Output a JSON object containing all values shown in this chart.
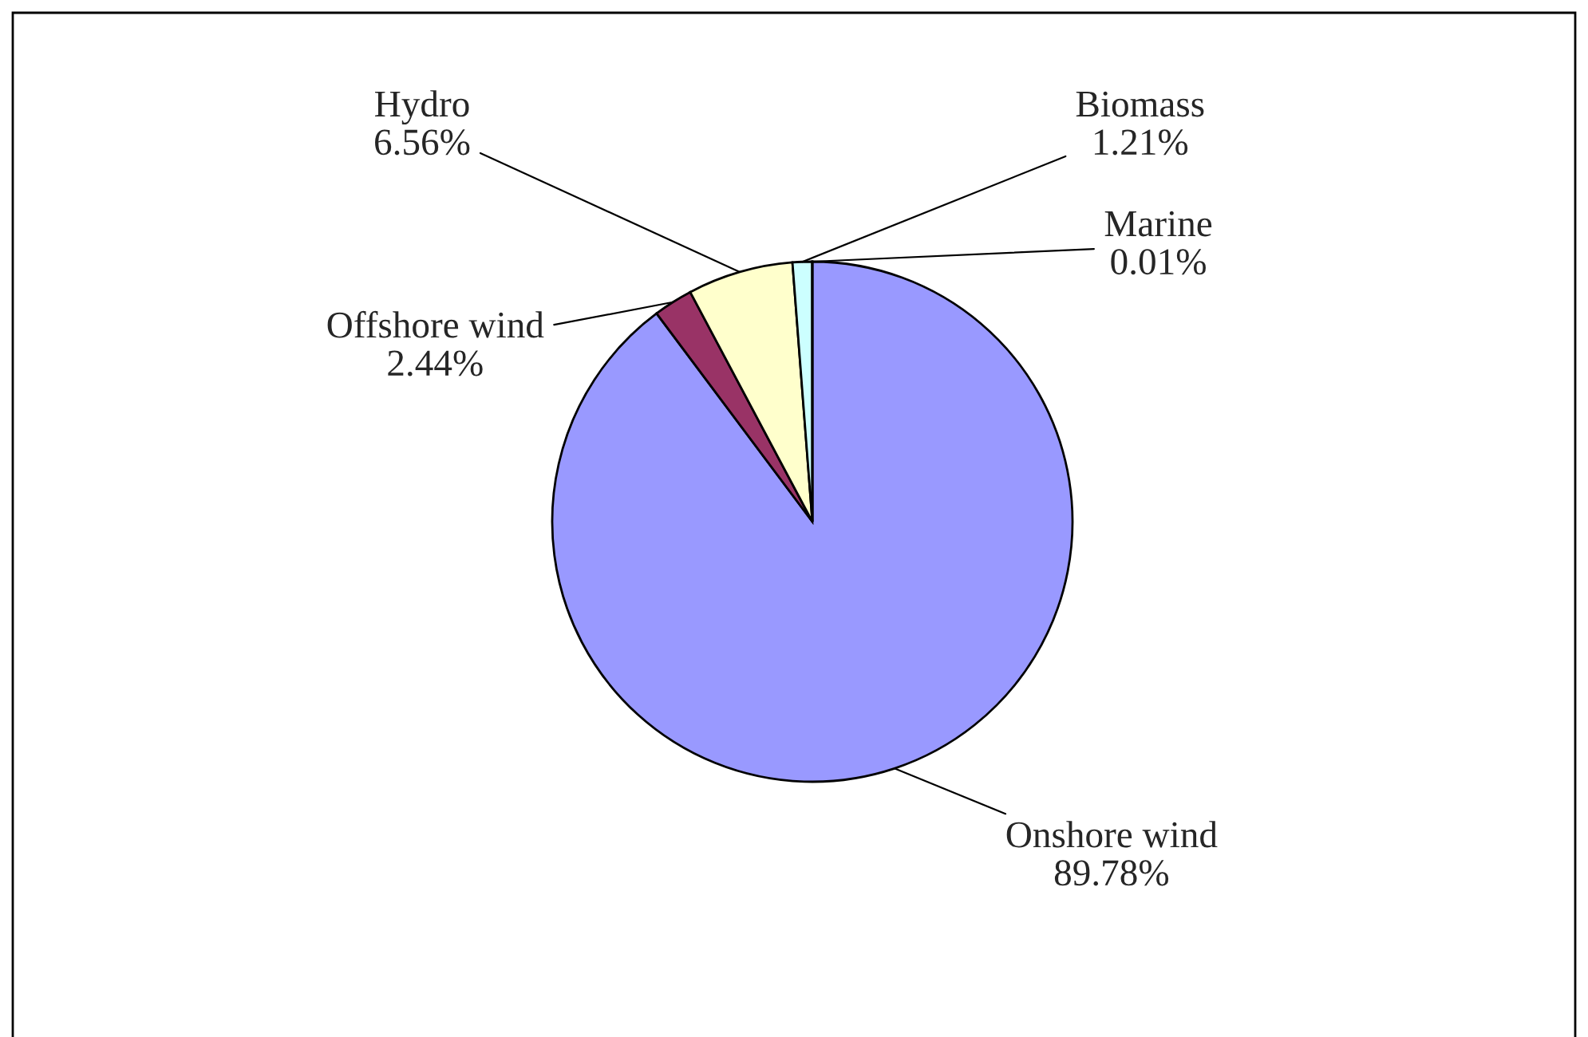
{
  "chart_data": {
    "type": "pie",
    "categories": [
      "Onshore wind",
      "Offshore wind",
      "Hydro",
      "Biomass",
      "Marine"
    ],
    "values": [
      89.78,
      2.44,
      6.56,
      1.21,
      0.01
    ],
    "value_labels": [
      "89.78%",
      "2.44%",
      "6.56%",
      "1.21%",
      "0.01%"
    ],
    "colors": [
      "#9999ff",
      "#993366",
      "#ffffcc",
      "#ccffff",
      "#660066"
    ],
    "legend": false
  }
}
